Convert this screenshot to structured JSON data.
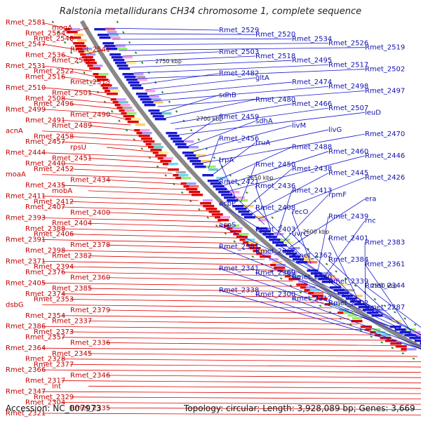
{
  "title": "Ralstonia metallidurans CH34 chromosome 1, complete sequence",
  "footer": {
    "accession": "Accession: NC_007973",
    "summary": "Topology: circular; Length: 3,928,089 bp; Genes: 3,669"
  },
  "kbp_labels": [
    "2750 kbp",
    "2700 kbp",
    "2650 kbp",
    "2600 kbp",
    "2550 kbp",
    "2500 kbp",
    "2450 kbp"
  ],
  "left_labels": [
    "Rmet_2581",
    "mogA",
    "Rmet_2564",
    "Rmet_2548",
    "Rmet_2547",
    "Rmet_2541",
    "Rmet_2536",
    "Rmet_2532",
    "Rmet_2531",
    "Rmet_2522",
    "Rmet_2516",
    "Rmet_2513",
    "Rmet_2510",
    "Rmet_2501",
    "Rmet_2508",
    "Rmet_2496",
    "Rmet_2499",
    "Rmet_2490",
    "Rmet_2491",
    "Rmet_2489",
    "acnA",
    "Rmet_2458",
    "Rmet_2457",
    "rpsU",
    "Rmet_2444",
    "Rmet_2451",
    "Rmet_2440",
    "Rmet_2452",
    "moaA",
    "Rmet_2434",
    "Rmet_2435",
    "mobA",
    "Rmet_2411",
    "Rmet_2412",
    "Rmet_2407",
    "Rmet_2400",
    "Rmet_2393",
    "Rmet_2404",
    "Rmet_2388",
    "Rmet_2406",
    "Rmet_2391",
    "Rmet_2378",
    "Rmet_2398",
    "Rmet_2382",
    "Rmet_2371",
    "Rmet_2394",
    "Rmet_2376",
    "Rmet_2360",
    "Rmet_2405",
    "Rmet_2385",
    "Rmet_2374",
    "Rmet_2353",
    "dsbG",
    "Rmet_2379",
    "Rmet_2354",
    "Rmet_2337",
    "Rmet_2386",
    "Rmet_2373",
    "Rmet_2357",
    "Rmet_2336",
    "Rmet_2364",
    "Rmet_2345",
    "Rmet_2328",
    "Rmet_2377",
    "Rmet_2366",
    "Rmet_2346",
    "Rmet_2317",
    "lnt",
    "Rmet_2347",
    "Rmet_2329",
    "Rmet_2304",
    "Rmet_2335",
    "Rmet_2321"
  ],
  "right_labels": [
    "Rmet_2529",
    "Rmet_2520",
    "Rmet_2534",
    "Rmet_2526",
    "Rmet_2519",
    "Rmet_2503",
    "Rmet_2518",
    "Rmet_2495",
    "Rmet_2517",
    "Rmet_2502",
    "Rmet_2482",
    "gltA",
    "Rmet_2474",
    "Rmet_2498",
    "Rmet_2497",
    "sdhB",
    "Rmet_2480",
    "Rmet_2466",
    "Rmet_2507",
    "leuD",
    "Rmet_2459",
    "sdhA",
    "livM",
    "livG",
    "Rmet_2470",
    "Rmet_2456",
    "truA",
    "Rmet_2488",
    "Rmet_2460",
    "Rmet_2446",
    "trpA",
    "Rmet_2450",
    "Rmet_2438",
    "Rmet_2445",
    "Rmet_2426",
    "Rmet_2421",
    "Rmet_2436",
    "Rmet_2413",
    "rpmF",
    "era",
    "acpP",
    "Rmet_2408",
    "recO",
    "Rmet_2439",
    "rnc",
    "acpS",
    "Rmet_2403",
    "uvrC",
    "Rmet_2401",
    "Rmet_2383",
    "Rmet_2381",
    "Rmet_2367",
    "Rmet_2362",
    "Rmet_2384",
    "Rmet_2361",
    "Rmet_2341",
    "Rmet_2369",
    "Rmet_2340",
    "Rmet_2339",
    "Rmet_2344",
    "Rmet_2338",
    "Rmet_2300",
    "Rmet_2312",
    "Rmet_2302",
    "Rmet_2287"
  ],
  "colors": {
    "forward": "#e00000",
    "reverse": "#1818d0",
    "backbone": "#888888"
  }
}
